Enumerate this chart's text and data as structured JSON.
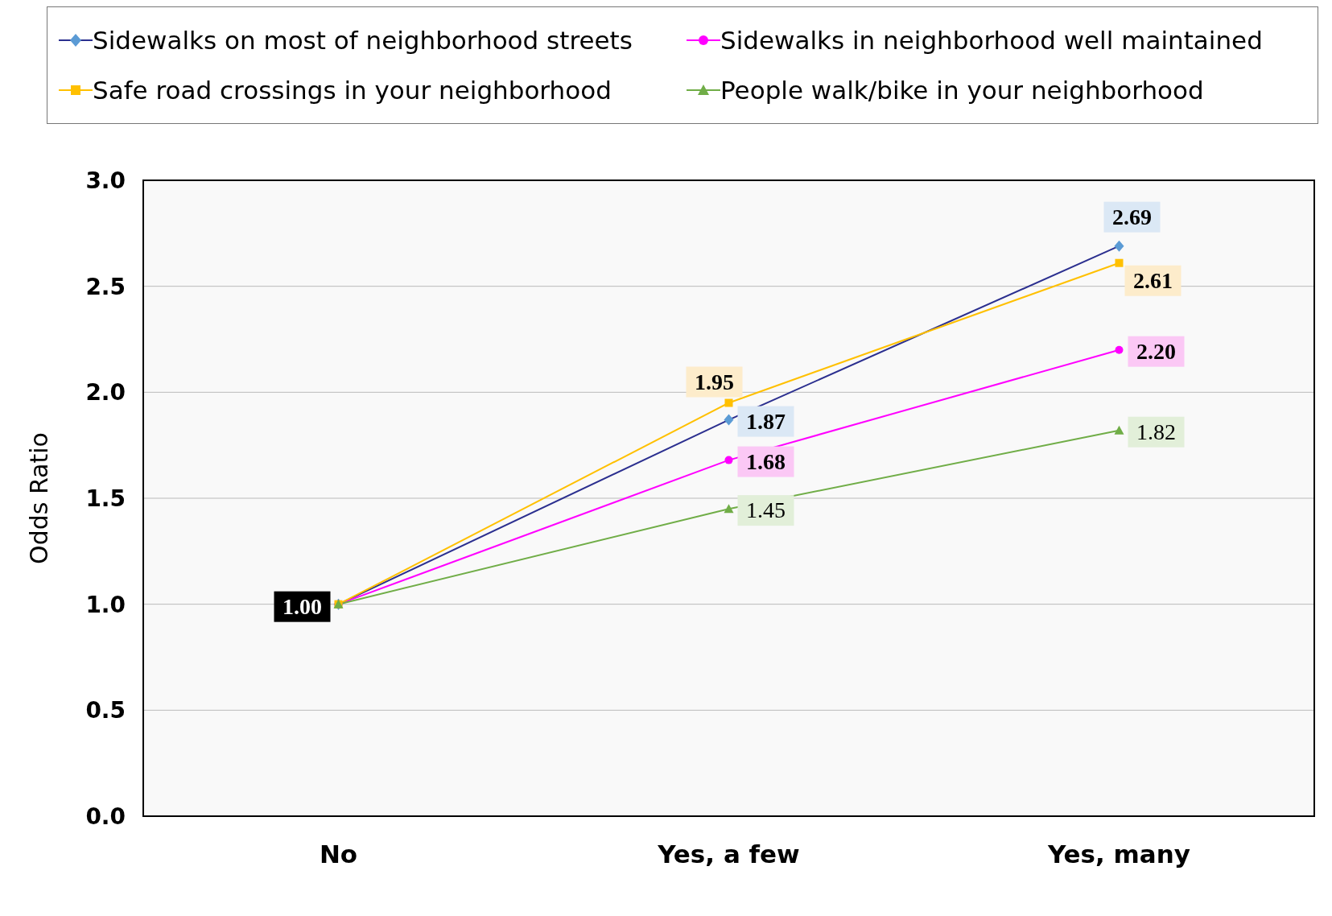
{
  "chart_data": {
    "type": "line",
    "ylabel": "Odds Ratio",
    "categories": [
      "No",
      "Yes, a few",
      "Yes, many"
    ],
    "ylim": [
      0,
      3
    ],
    "yticks": [
      {
        "value": 0,
        "label": "0.0"
      },
      {
        "value": 0.5,
        "label": "0.5"
      },
      {
        "value": 1,
        "label": "1.0"
      },
      {
        "value": 1.5,
        "label": "1.5"
      },
      {
        "value": 2,
        "label": "2.0"
      },
      {
        "value": 2.5,
        "label": "2.5"
      },
      {
        "value": 3,
        "label": "3.0"
      }
    ],
    "grid": "y",
    "legend": "top",
    "series": [
      {
        "name": "Sidewalks on most of neighborhood streets",
        "color": "#2b2f8f",
        "colors": [
          "#5b9bd5",
          "#5b9bd5",
          "#5b9bd5"
        ],
        "marker": "diamond",
        "values": [
          1,
          1.87,
          2.69
        ],
        "value_labels": [
          "1.00",
          "1.87",
          "2.69"
        ]
      },
      {
        "name": "Sidewalks in neighborhood well maintained",
        "color": "#ff00ff",
        "marker": "circle",
        "values": [
          1,
          1.68,
          2.2
        ],
        "value_labels": [
          null,
          "1.68",
          "2.20"
        ]
      },
      {
        "name": "Safe road crossings in your neighborhood",
        "color": "#ffc000",
        "marker": "square",
        "values": [
          1,
          1.95,
          2.61
        ],
        "value_labels": [
          null,
          "1.95",
          "2.61"
        ]
      },
      {
        "name": "People walk/bike in your neighborhood",
        "color": "#70ad47",
        "marker": "triangle",
        "values": [
          1,
          1.45,
          1.82
        ],
        "value_labels": [
          null,
          "1.45",
          "1.82"
        ]
      }
    ]
  }
}
